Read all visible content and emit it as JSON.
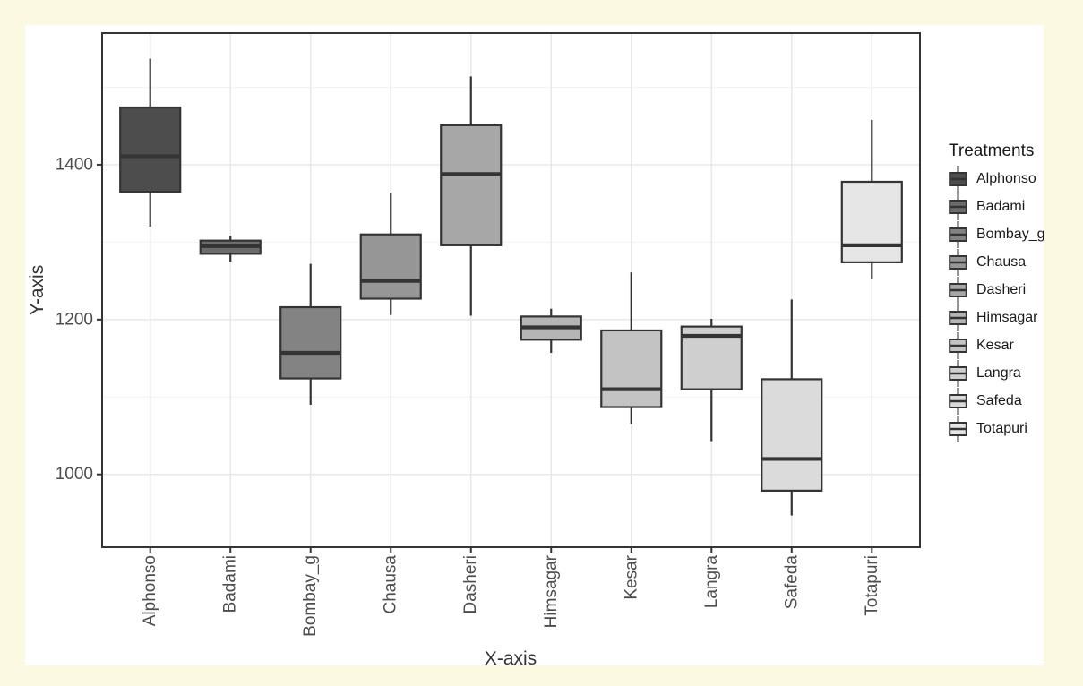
{
  "canvas": {
    "background": "#fcf9e2",
    "figure_background": "#ffffff"
  },
  "chart_data": {
    "type": "boxplot",
    "title": "",
    "xlabel": "X-axis",
    "ylabel": "Y-axis",
    "legend_title": "Treatments",
    "legend_position": "right",
    "grid": true,
    "ylim": [
      906,
      1570
    ],
    "y_major_ticks": [
      1000,
      1200,
      1400
    ],
    "y_minor_ticks": [
      1100,
      1300,
      1500
    ],
    "categories": [
      "Alphonso",
      "Badami",
      "Bombay_g",
      "Chausa",
      "Dasheri",
      "Himsagar",
      "Kesar",
      "Langra",
      "Safeda",
      "Totapuri"
    ],
    "series": [
      {
        "name": "Alphonso",
        "fill": "#4D4D4D",
        "whisker_low": 1320,
        "q1": 1365,
        "median": 1411,
        "q3": 1474,
        "whisker_high": 1537
      },
      {
        "name": "Badami",
        "fill": "#6C6C6C",
        "whisker_low": 1275,
        "q1": 1285,
        "median": 1295,
        "q3": 1302,
        "whisker_high": 1308
      },
      {
        "name": "Bombay_g",
        "fill": "#838383",
        "whisker_low": 1090,
        "q1": 1124,
        "median": 1157,
        "q3": 1216,
        "whisker_high": 1272
      },
      {
        "name": "Chausa",
        "fill": "#969696",
        "whisker_low": 1206,
        "q1": 1227,
        "median": 1250,
        "q3": 1310,
        "whisker_high": 1364
      },
      {
        "name": "Dasheri",
        "fill": "#A7A7A7",
        "whisker_low": 1205,
        "q1": 1296,
        "median": 1388,
        "q3": 1451,
        "whisker_high": 1514
      },
      {
        "name": "Himsagar",
        "fill": "#B5B5B5",
        "whisker_low": 1157,
        "q1": 1174,
        "median": 1190,
        "q3": 1204,
        "whisker_high": 1214
      },
      {
        "name": "Kesar",
        "fill": "#C3C3C3",
        "whisker_low": 1065,
        "q1": 1087,
        "median": 1110,
        "q3": 1186,
        "whisker_high": 1261
      },
      {
        "name": "Langra",
        "fill": "#CFCFCF",
        "whisker_low": 1043,
        "q1": 1110,
        "median": 1179,
        "q3": 1191,
        "whisker_high": 1201
      },
      {
        "name": "Safeda",
        "fill": "#DBDBDB",
        "whisker_low": 947,
        "q1": 979,
        "median": 1020,
        "q3": 1123,
        "whisker_high": 1226
      },
      {
        "name": "Totapuri",
        "fill": "#E6E6E6",
        "whisker_low": 1252,
        "q1": 1274,
        "median": 1296,
        "q3": 1378,
        "whisker_high": 1458
      }
    ],
    "colors": {
      "box_border": "#343434",
      "panel_border": "#343434",
      "grid_major": "#e8e8e8",
      "grid_minor": "#f2f2f2",
      "tick_mark": "#343434",
      "tick_label": "#4d4d4d",
      "axis_title": "#333333",
      "legend_text": "#1a1a1a"
    }
  }
}
